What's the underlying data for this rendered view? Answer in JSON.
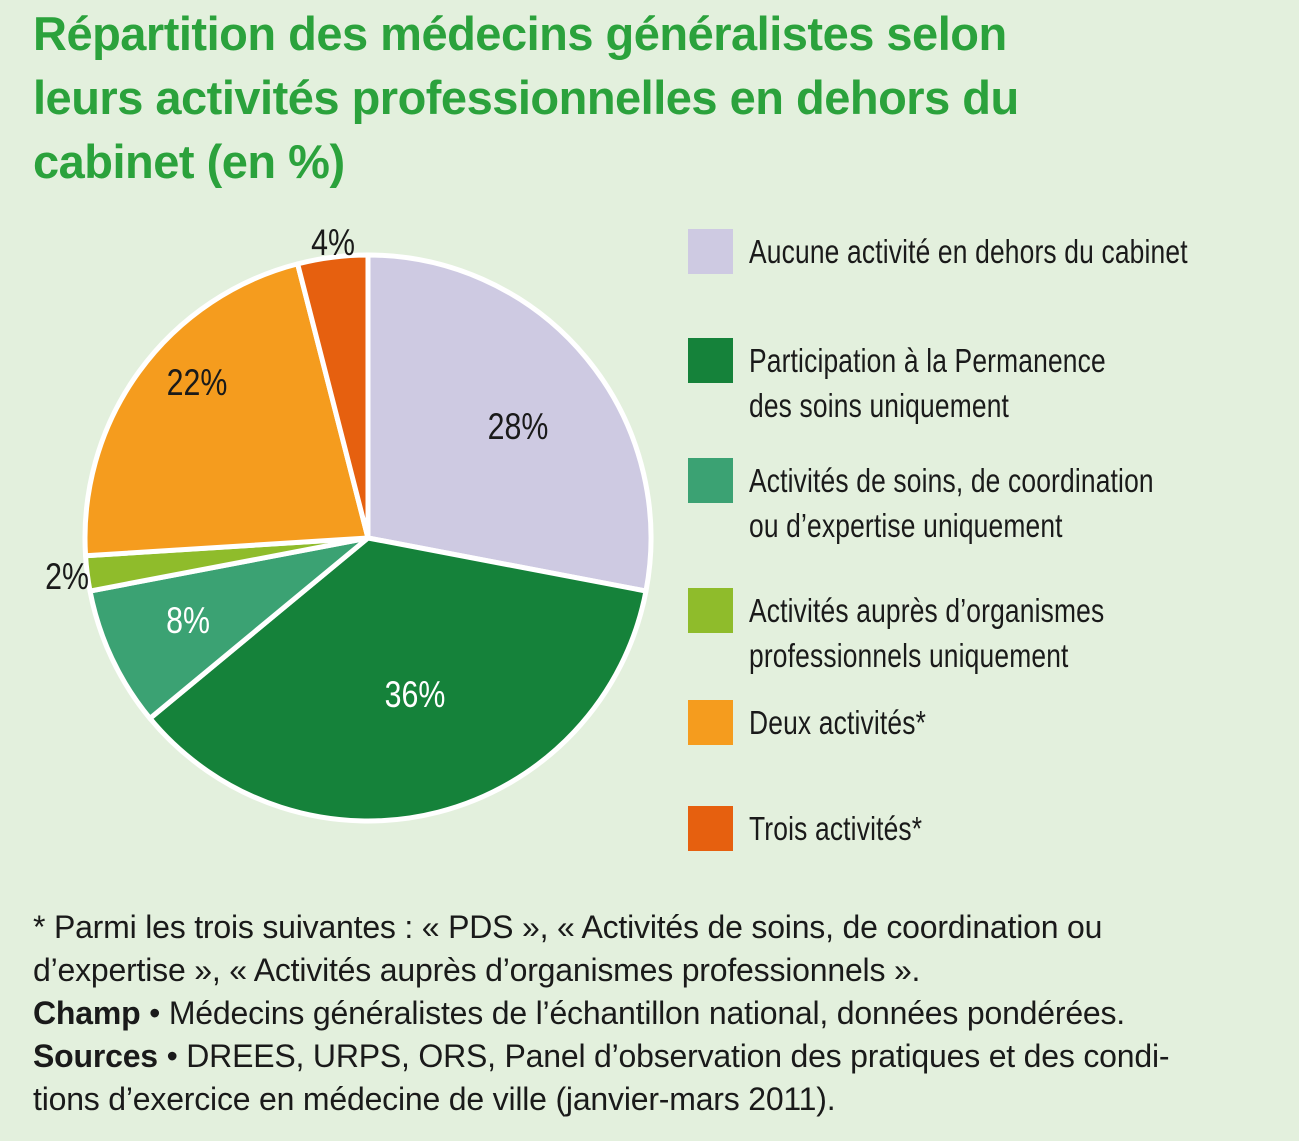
{
  "header": {
    "title": "Répartition des médecins généralistes selon\nleurs activités professionnelles en dehors du\ncabinet (en %)",
    "title_color": "#2ba23c"
  },
  "chart_data": {
    "type": "pie",
    "title": "Répartition des médecins généralistes selon leurs activités professionnelles en dehors du cabinet (en %)",
    "unit": "%",
    "start_angle_deg": 0,
    "direction": "clockwise",
    "legend_position": "right",
    "background_color": "#e3f0dd",
    "slice_border_color": "#ffffff",
    "slices": [
      {
        "label": "Aucune activité en dehors du cabinet",
        "legend_label": "Aucune activité en dehors du cabinet",
        "value": 28,
        "pct_label": "28%",
        "color": "#cecae2",
        "label_color": "#1a1a1a",
        "label_placement": "inside",
        "label_offset": [
          150,
          -111
        ]
      },
      {
        "label": "Participation à la Permanence des soins uniquement",
        "legend_label": "Participation à la Permanence\ndes soins uniquement",
        "value": 36,
        "pct_label": "36%",
        "color": "#15823a",
        "label_color": "#ffffff",
        "label_placement": "inside",
        "label_offset": [
          47,
          157
        ]
      },
      {
        "label": "Activités de soins, de coordination ou d’expertise uniquement",
        "legend_label": "Activités de soins, de coordination\nou d’expertise uniquement",
        "value": 8,
        "pct_label": "8%",
        "color": "#3ba273",
        "label_color": "#ffffff",
        "label_placement": "inside",
        "label_offset": [
          -180,
          83
        ]
      },
      {
        "label": "Activités auprès d’organismes professionnels uniquement",
        "legend_label": "Activités auprès d’organismes\nprofessionnels uniquement",
        "value": 2,
        "pct_label": "2%",
        "color": "#8fbc2b",
        "label_color": "#1a1a1a",
        "label_placement": "outside",
        "label_offset": [
          -301,
          39
        ]
      },
      {
        "label": "Deux activités*",
        "legend_label": "Deux activités*",
        "value": 22,
        "pct_label": "22%",
        "color": "#f59c1e",
        "label_color": "#1a1a1a",
        "label_placement": "inside",
        "label_offset": [
          -171,
          -155
        ]
      },
      {
        "label": "Trois activités*",
        "legend_label": "Trois activités*",
        "value": 4,
        "pct_label": "4%",
        "color": "#e6600f",
        "label_color": "#1a1a1a",
        "label_placement": "outside",
        "label_offset": [
          -35,
          -295
        ]
      }
    ]
  },
  "footnotes": {
    "asterisk": "* Parmi les trois suivantes : « PDS », « Activités de soins, de coordination ou\nd’expertise », « Activités auprès d’organismes professionnels ».",
    "champ_label": "Champ",
    "champ_text": " • Médecins généralistes de l’échantillon national, données pondérées.",
    "sources_label": "Sources",
    "sources_text": " • DREES, URPS, ORS, Panel d’observation des pratiques et des condi-\ntions d’exercice en médecine de ville (janvier-mars 2011)."
  }
}
